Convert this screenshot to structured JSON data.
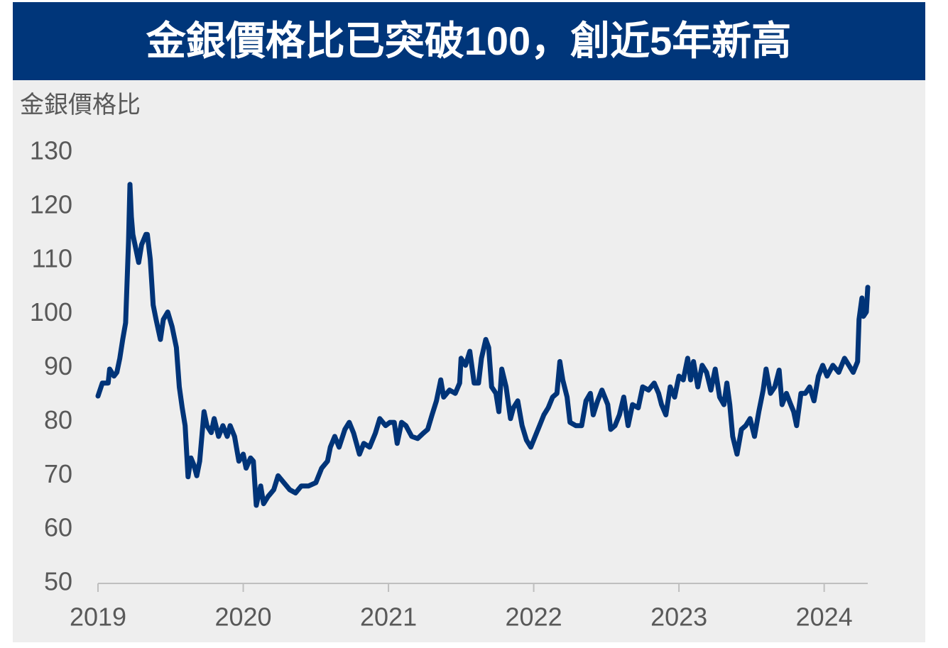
{
  "chart_data": {
    "type": "line",
    "title": "金銀價格比已突破100，創近5年新高",
    "y_label": "金銀價格比",
    "x": [
      2019.0,
      2019.03,
      2019.07,
      2019.08,
      2019.11,
      2019.13,
      2019.15,
      2019.17,
      2019.19,
      2019.21,
      2019.22,
      2019.23,
      2019.24,
      2019.26,
      2019.28,
      2019.3,
      2019.33,
      2019.34,
      2019.36,
      2019.38,
      2019.4,
      2019.43,
      2019.45,
      2019.48,
      2019.51,
      2019.54,
      2019.56,
      2019.58,
      2019.6,
      2019.62,
      2019.64,
      2019.66,
      2019.68,
      2019.7,
      2019.73,
      2019.75,
      2019.78,
      2019.8,
      2019.83,
      2019.86,
      2019.89,
      2019.91,
      2019.94,
      2019.97,
      2020.0,
      2020.02,
      2020.05,
      2020.07,
      2020.09,
      2020.12,
      2020.14,
      2020.17,
      2020.21,
      2020.24,
      2020.28,
      2020.32,
      2020.36,
      2020.4,
      2020.45,
      2020.5,
      2020.54,
      2020.58,
      2020.6,
      2020.63,
      2020.66,
      2020.7,
      2020.73,
      2020.76,
      2020.8,
      2020.83,
      2020.87,
      2020.91,
      2020.94,
      2020.98,
      2021.01,
      2021.04,
      2021.06,
      2021.09,
      2021.12,
      2021.16,
      2021.2,
      2021.24,
      2021.27,
      2021.3,
      2021.33,
      2021.36,
      2021.38,
      2021.42,
      2021.46,
      2021.49,
      2021.5,
      2021.53,
      2021.56,
      2021.59,
      2021.62,
      2021.64,
      2021.67,
      2021.69,
      2021.71,
      2021.74,
      2021.76,
      2021.78,
      2021.81,
      2021.84,
      2021.86,
      2021.89,
      2021.92,
      2021.95,
      2021.98,
      2022.01,
      2022.04,
      2022.07,
      2022.1,
      2022.13,
      2022.16,
      2022.18,
      2022.2,
      2022.23,
      2022.25,
      2022.29,
      2022.33,
      2022.36,
      2022.39,
      2022.41,
      2022.44,
      2022.47,
      2022.51,
      2022.53,
      2022.56,
      2022.59,
      2022.62,
      2022.65,
      2022.68,
      2022.72,
      2022.75,
      2022.79,
      2022.83,
      2022.86,
      2022.88,
      2022.91,
      2022.94,
      2022.97,
      2023.0,
      2023.03,
      2023.06,
      2023.08,
      2023.1,
      2023.13,
      2023.16,
      2023.19,
      2023.22,
      2023.25,
      2023.28,
      2023.31,
      2023.33,
      2023.35,
      2023.37,
      2023.4,
      2023.43,
      2023.46,
      2023.49,
      2023.52,
      2023.55,
      2023.58,
      2023.6,
      2023.63,
      2023.66,
      2023.69,
      2023.71,
      2023.74,
      2023.77,
      2023.79,
      2023.81,
      2023.84,
      2023.87,
      2023.9,
      2023.93,
      2023.96,
      2023.99,
      2024.02,
      2024.06,
      2024.1,
      2024.14,
      2024.17,
      2024.2,
      2024.23,
      2024.24,
      2024.26,
      2024.27,
      2024.29,
      2024.3
    ],
    "series": [
      {
        "name": "金銀價格比",
        "color": "#003478",
        "values": [
          84.8,
          87.2,
          87.2,
          89.8,
          88.5,
          89.2,
          91.8,
          95.3,
          98.4,
          113.5,
          124.1,
          118.1,
          114.8,
          112.2,
          109.6,
          112.9,
          114.8,
          114.8,
          110.2,
          101.7,
          99.0,
          95.3,
          99.0,
          100.4,
          97.7,
          93.8,
          86.5,
          82.6,
          79.3,
          69.8,
          73.3,
          72.0,
          70.0,
          72.7,
          81.9,
          79.3,
          78.0,
          80.6,
          77.3,
          79.3,
          77.3,
          79.3,
          77.3,
          72.7,
          74.0,
          71.4,
          73.3,
          72.7,
          64.5,
          68.1,
          64.8,
          66.1,
          67.4,
          70.0,
          68.7,
          67.4,
          66.8,
          68.1,
          68.1,
          68.7,
          71.4,
          72.7,
          75.3,
          77.3,
          75.3,
          78.6,
          79.9,
          77.9,
          74.0,
          76.0,
          75.3,
          77.9,
          80.6,
          79.3,
          79.9,
          79.9,
          76.0,
          79.9,
          79.3,
          77.3,
          76.9,
          77.9,
          78.6,
          81.3,
          83.9,
          87.8,
          84.6,
          85.9,
          85.3,
          87.2,
          91.8,
          90.5,
          93.1,
          87.2,
          87.2,
          91.8,
          95.3,
          93.8,
          86.5,
          85.3,
          81.9,
          89.8,
          86.5,
          80.6,
          82.6,
          83.9,
          79.3,
          76.6,
          75.3,
          77.3,
          79.3,
          81.3,
          82.6,
          84.6,
          85.3,
          91.2,
          87.8,
          84.6,
          79.9,
          79.3,
          79.3,
          83.9,
          85.3,
          81.3,
          83.9,
          85.9,
          83.2,
          78.6,
          79.3,
          81.3,
          84.6,
          79.3,
          83.2,
          82.6,
          86.5,
          85.9,
          87.2,
          85.3,
          83.2,
          81.3,
          86.5,
          84.6,
          88.5,
          87.8,
          91.8,
          87.8,
          91.2,
          86.5,
          90.5,
          89.2,
          85.9,
          89.8,
          84.6,
          83.2,
          87.2,
          83.2,
          77.3,
          74.0,
          78.6,
          79.3,
          80.6,
          77.3,
          81.9,
          85.9,
          89.8,
          85.3,
          86.5,
          89.6,
          83.2,
          85.3,
          83.2,
          81.9,
          79.3,
          85.3,
          85.3,
          86.5,
          83.9,
          88.5,
          90.5,
          88.5,
          90.5,
          89.2,
          91.8,
          90.5,
          89.2,
          91.2,
          99.0,
          103.0,
          99.6,
          100.4,
          105.0
        ]
      }
    ],
    "xlim": [
      2019,
      2024.3
    ],
    "xticks": [
      2019,
      2020,
      2021,
      2022,
      2023,
      2024
    ],
    "ylim": [
      50,
      130
    ],
    "yticks": [
      50,
      60,
      70,
      80,
      90,
      100,
      110,
      120,
      130
    ],
    "grid": false
  }
}
